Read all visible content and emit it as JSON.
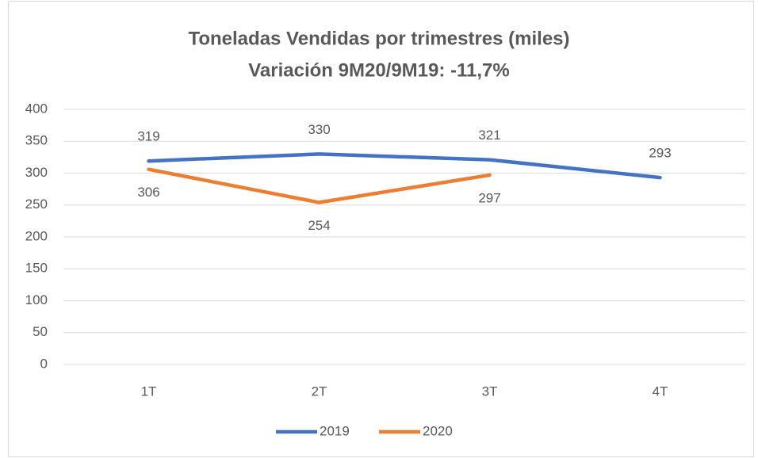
{
  "chart_data": {
    "type": "line",
    "title": "Toneladas Vendidas por trimestres (miles)",
    "subtitle": "Variación 9M20/9M19: -11,7%",
    "categories": [
      "1T",
      "2T",
      "3T",
      "4T"
    ],
    "series": [
      {
        "name": "2019",
        "color": "#4472c4",
        "values": [
          319,
          330,
          321,
          293
        ]
      },
      {
        "name": "2020",
        "color": "#ed7d31",
        "values": [
          306,
          254,
          297,
          null
        ]
      }
    ],
    "ylim": [
      0,
      400
    ],
    "yticks": [
      0,
      50,
      100,
      150,
      200,
      250,
      300,
      350,
      400
    ],
    "grid": true,
    "legend": "bottom"
  }
}
